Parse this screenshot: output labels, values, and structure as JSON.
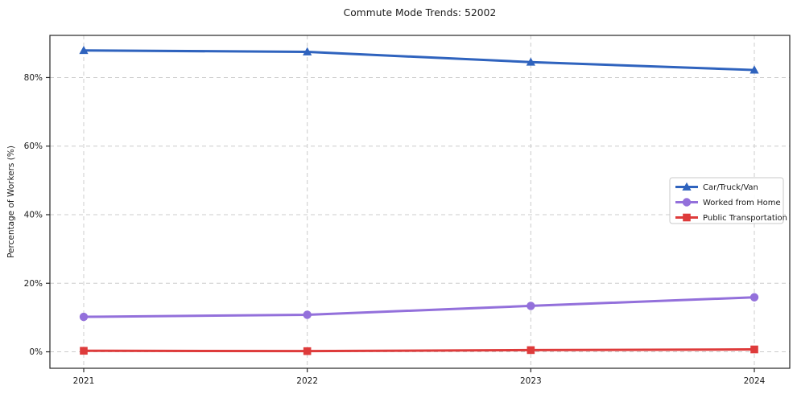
{
  "chart_data": {
    "type": "line",
    "title": "Commute Mode Trends: 52002",
    "xlabel": "",
    "ylabel": "Percentage of Workers (%)",
    "x": [
      2021,
      2022,
      2023,
      2024
    ],
    "series": [
      {
        "name": "Car/Truck/Van",
        "color": "#2f63be",
        "marker": "triangle",
        "values": [
          87.9,
          87.5,
          84.5,
          82.2
        ]
      },
      {
        "name": "Worked from Home",
        "color": "#9370db",
        "marker": "circle",
        "values": [
          10.2,
          10.8,
          13.4,
          15.9
        ]
      },
      {
        "name": "Public Transportation",
        "color": "#de3b3b",
        "marker": "square",
        "values": [
          0.3,
          0.2,
          0.5,
          0.7
        ]
      }
    ],
    "yticks": [
      0,
      20,
      40,
      60,
      80
    ],
    "ytick_labels": [
      "0%",
      "20%",
      "40%",
      "60%",
      "80%"
    ],
    "ylim": [
      -4.8,
      92.3
    ],
    "grid": "dashed",
    "grid_color": "#cccccc",
    "spine_color": "#262626",
    "tick_label_color": "#1a1a1a",
    "legend_position": "center-right"
  }
}
